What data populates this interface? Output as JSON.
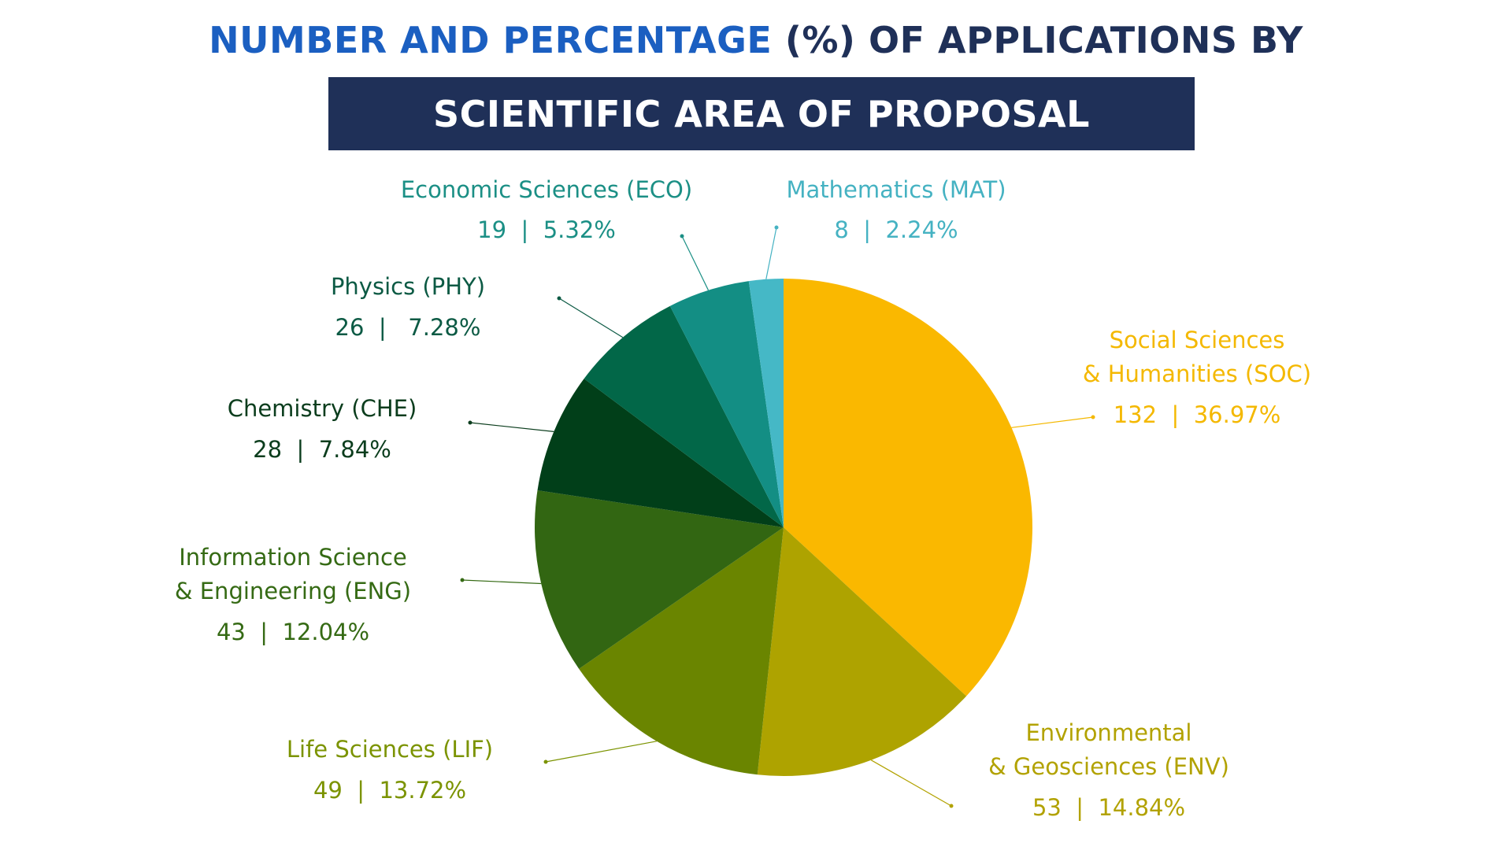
{
  "header": {
    "title_part1": "NUMBER AND PERCENTAGE",
    "title_part2": "(%) OF APPLICATIONS BY",
    "title_line2": "SCIENTIFIC AREA OF PROPOSAL"
  },
  "colors": {
    "title_blue": "#1b5fc1",
    "title_navy": "#1f3058",
    "banner_bg": "#1f3058"
  },
  "chart_data": {
    "type": "pie",
    "title": "NUMBER AND PERCENTAGE (%) OF APPLICATIONS BY SCIENTIFIC AREA OF PROPOSAL",
    "start": "12 o'clock, clockwise",
    "slices": [
      {
        "name": "Social Sciences & Humanities (SOC)",
        "label_lines": [
          "Social Sciences",
          "& Humanities (SOC)"
        ],
        "value_text": "132  |  36.97%",
        "value": 132,
        "percent": 36.97,
        "color": "#fab800"
      },
      {
        "name": "Environmental & Geosciences (ENV)",
        "label_lines": [
          "Environmental",
          "& Geosciences (ENV)"
        ],
        "value_text": "53  |  14.84%",
        "value": 53,
        "percent": 14.84,
        "color": "#aea300"
      },
      {
        "name": "Life Sciences (LIF)",
        "label_lines": [
          "Life Sciences (LIF)"
        ],
        "value_text": "49  |  13.72%",
        "value": 49,
        "percent": 13.72,
        "color": "#6a8500"
      },
      {
        "name": "Information Science & Engineering (ENG)",
        "label_lines": [
          "Information Science",
          "& Engineering (ENG)"
        ],
        "value_text": "43  |  12.04%",
        "value": 43,
        "percent": 12.04,
        "color": "#326612"
      },
      {
        "name": "Chemistry (CHE)",
        "label_lines": [
          "Chemistry (CHE)"
        ],
        "value_text": "28  |  7.84%",
        "value": 28,
        "percent": 7.84,
        "color": "#013f19"
      },
      {
        "name": "Physics (PHY)",
        "label_lines": [
          "Physics (PHY)"
        ],
        "value_text": "26  |   7.28%",
        "value": 26,
        "percent": 7.28,
        "color": "#026748"
      },
      {
        "name": "Economic Sciences (ECO)",
        "label_lines": [
          "Economic Sciences (ECO)"
        ],
        "value_text": "19  |  5.32%",
        "value": 19,
        "percent": 5.32,
        "color": "#138e84"
      },
      {
        "name": "Mathematics (MAT)",
        "label_lines": [
          "Mathematics (MAT)"
        ],
        "value_text": "8  |  2.24%",
        "value": 8,
        "percent": 2.24,
        "color": "#45b8c6"
      }
    ],
    "label_colors": [
      "#f4b800",
      "#b2a200",
      "#7b9300",
      "#356a14",
      "#0b3d1d",
      "#0c5a44",
      "#1b8f85",
      "#45b2c2"
    ]
  }
}
